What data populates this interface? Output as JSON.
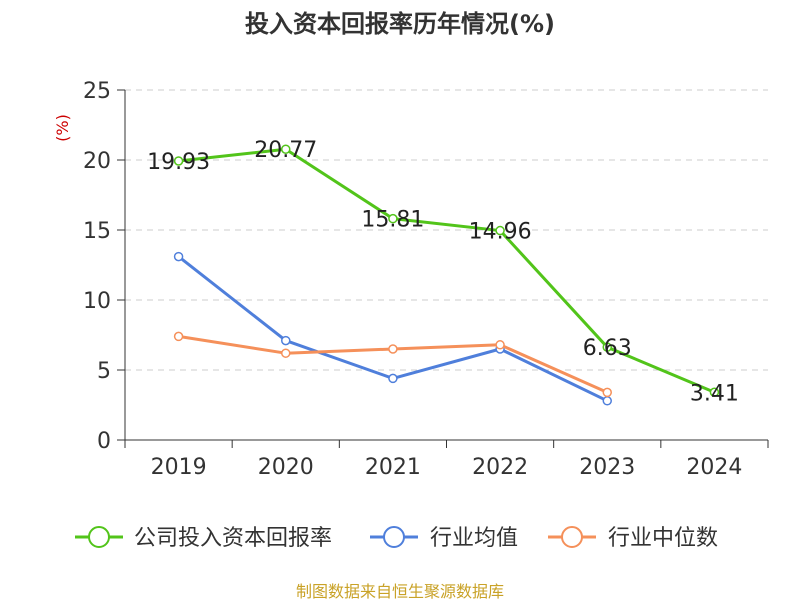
{
  "title": "投入资本回报率历年情况(%)",
  "source": "制图数据来自恒生聚源数据库",
  "chart_data": {
    "type": "line",
    "title": "投入资本回报率历年情况(%)",
    "ylabel": "(%)",
    "xlabel": "",
    "categories": [
      "2019",
      "2020",
      "2021",
      "2022",
      "2023",
      "2024"
    ],
    "ylim": [
      0,
      25
    ],
    "yticks": [
      0,
      5,
      10,
      15,
      20,
      25
    ],
    "grid": true,
    "legend_position": "bottom",
    "series": [
      {
        "name": "公司投入资本回报率",
        "color": "#52c41a",
        "values": [
          19.93,
          20.77,
          15.81,
          14.96,
          6.63,
          3.41
        ],
        "labels": [
          "19.93",
          "20.77",
          "15.81",
          "14.96",
          "6.63",
          "3.41"
        ],
        "show_labels": true
      },
      {
        "name": "行业均值",
        "color": "#4f7fdb",
        "values": [
          13.1,
          7.1,
          4.4,
          6.5,
          2.8,
          null
        ],
        "show_labels": false
      },
      {
        "name": "行业中位数",
        "color": "#f5905a",
        "values": [
          7.4,
          6.2,
          6.5,
          6.8,
          3.4,
          null
        ],
        "show_labels": false
      }
    ]
  }
}
